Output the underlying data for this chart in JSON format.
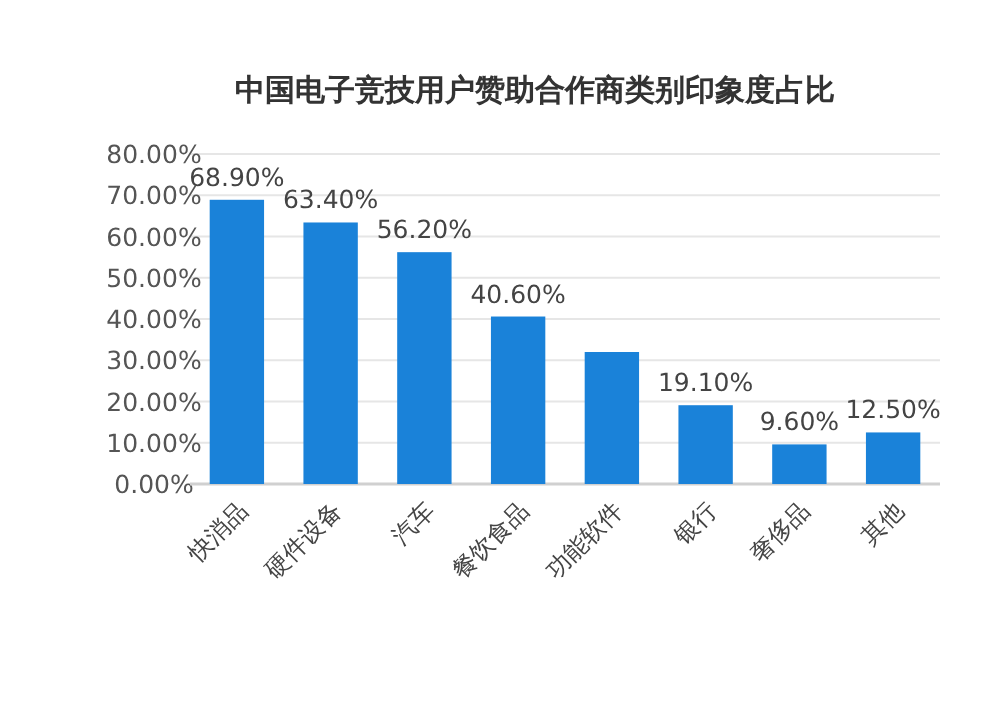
{
  "chart_data": {
    "type": "bar",
    "title": "中国电子竞技用户赞助合作商类别印象度占比",
    "categories": [
      "快消品",
      "硬件设备",
      "汽车",
      "餐饮食品",
      "功能软件",
      "银行",
      "奢侈品",
      "其他"
    ],
    "values": [
      68.9,
      63.4,
      56.2,
      40.6,
      32,
      19.1,
      9.6,
      12.5
    ],
    "value_labels": [
      "68.90%",
      "63.40%",
      "56.20%",
      "40.60%",
      null,
      "19.10%",
      "9.60%",
      "12.50%"
    ],
    "color": "#1a82d9",
    "ylim": [
      0,
      80
    ],
    "yticks": [
      {
        "value": 0,
        "label": "0.00%"
      },
      {
        "value": 10,
        "label": "10.00%"
      },
      {
        "value": 20,
        "label": "20.00%"
      },
      {
        "value": 30,
        "label": "30.00%"
      },
      {
        "value": 40,
        "label": "40.00%"
      },
      {
        "value": 50,
        "label": "50.00%"
      },
      {
        "value": 60,
        "label": "60.00%"
      },
      {
        "value": 70,
        "label": "70.00%"
      },
      {
        "value": 80,
        "label": "80.00%"
      }
    ],
    "grid": "y"
  }
}
